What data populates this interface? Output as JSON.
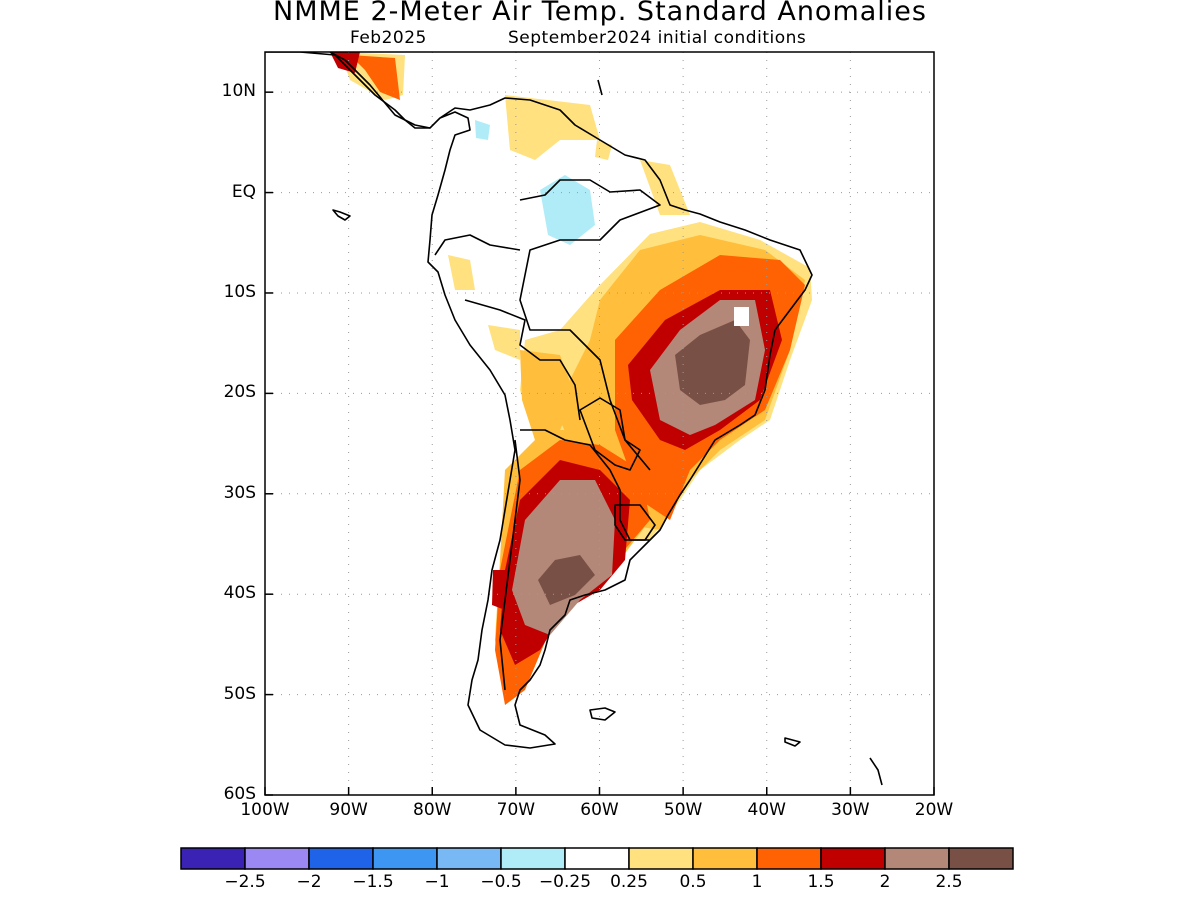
{
  "header": {
    "title": "NMME 2-Meter Air Temp. Standard Anomalies",
    "valid_month": "Feb2025",
    "initial_conditions": "September2024 initial conditions"
  },
  "chart_data": {
    "type": "heatmap",
    "variable": "2-meter air temperature standardized anomaly",
    "region": "South America",
    "x_axis": {
      "range": [
        -100,
        -20
      ],
      "ticks": [
        -100,
        -90,
        -80,
        -70,
        -60,
        -50,
        -40,
        -30,
        -20
      ],
      "tick_labels": [
        "100W",
        "90W",
        "80W",
        "70W",
        "60W",
        "50W",
        "40W",
        "30W",
        "20W"
      ]
    },
    "y_axis": {
      "range": [
        -60,
        14
      ],
      "ticks": [
        10,
        0,
        -10,
        -20,
        -30,
        -40,
        -50,
        -60
      ],
      "tick_labels": [
        "10N",
        "EQ",
        "10S",
        "20S",
        "30S",
        "40S",
        "50S",
        "60S"
      ]
    },
    "grid": "dotted",
    "colorbar": {
      "position": "bottom",
      "colors": [
        "#3a22b4",
        "#9c88f2",
        "#1f64e8",
        "#3c96f2",
        "#78b8f5",
        "#b0ecf8",
        "#ffffff",
        "#ffe17f",
        "#ffbe3c",
        "#ff6202",
        "#c00000",
        "#b48878",
        "#785046"
      ],
      "tick_labels": [
        "-2.5",
        "-2",
        "-1.5",
        "-1",
        "-0.5",
        "-0.25",
        "0.25",
        "0.5",
        "1",
        "1.5",
        "2",
        "2.5"
      ]
    },
    "anomaly_regions": [
      {
        "level": "0.5 to 1",
        "area": "northern Brazil, Amazon and Guianas coasts"
      },
      {
        "level": "1 to 1.5",
        "area": "central Brazil"
      },
      {
        "level": "1.5 to 2",
        "area": "eastern Brazil, northern Argentina"
      },
      {
        "level": "2 to 2.5",
        "area": "Mato Grosso to Minas Gerais; central Argentina"
      },
      {
        "level": "above 2.5",
        "area": "Bahia / Minas Gerais; Pampas of Argentina"
      },
      {
        "level": "-0.5 to -0.25",
        "area": "northern Amazon, Venezuela"
      }
    ]
  }
}
